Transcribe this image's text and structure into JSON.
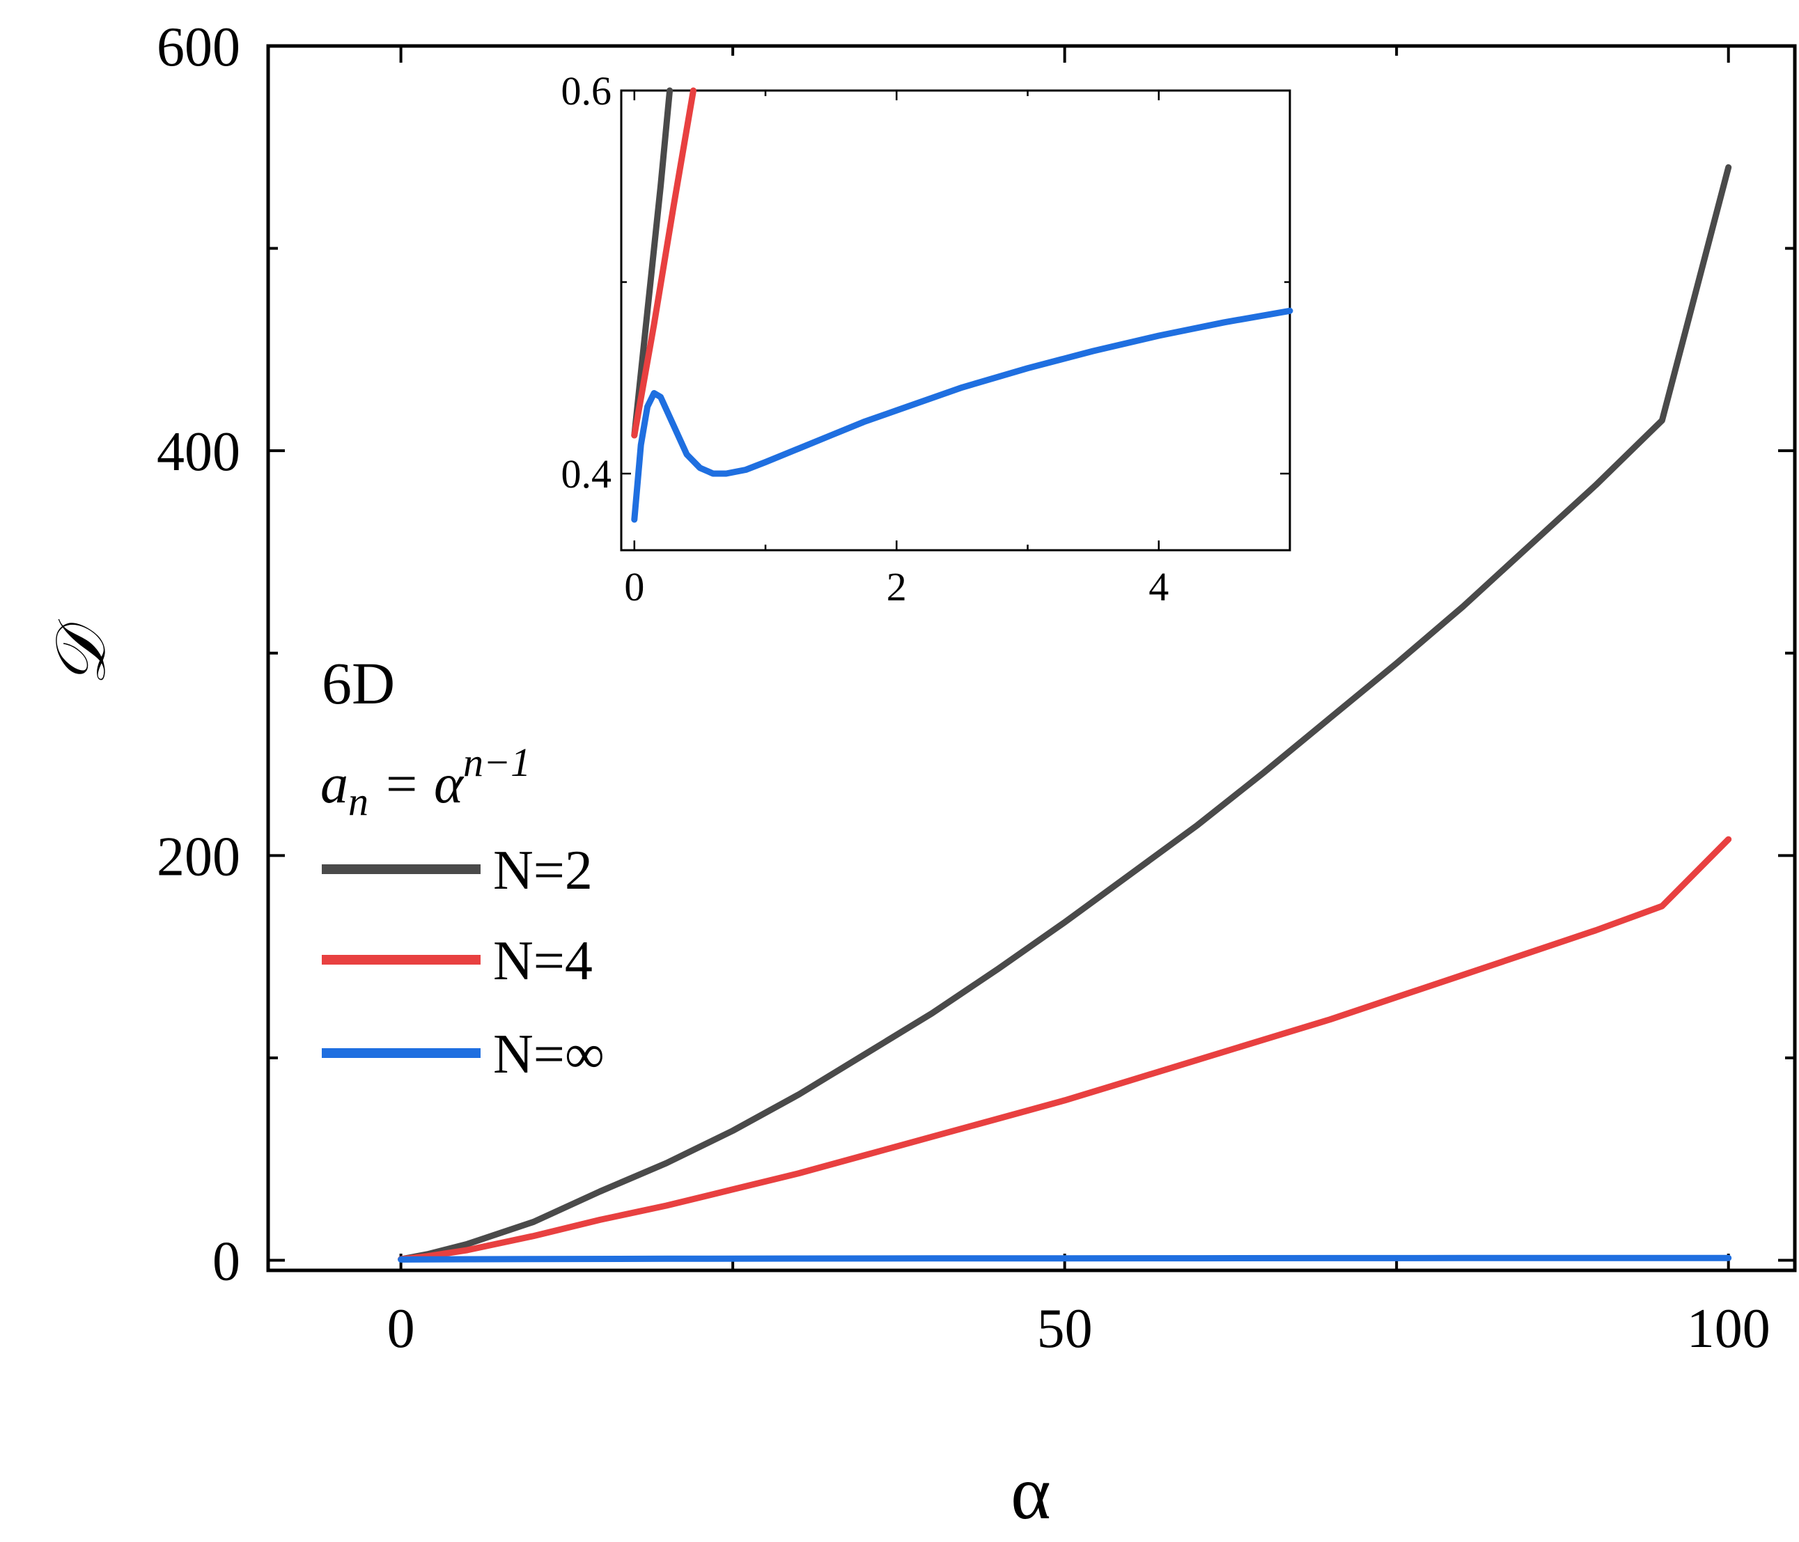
{
  "chart_data": [
    {
      "type": "line",
      "xlabel": "α",
      "ylabel": "𝒟",
      "xlim": [
        -10,
        105
      ],
      "ylim": [
        -5,
        600
      ],
      "xticks": [
        "0",
        "50",
        "100"
      ],
      "yticks": [
        "0",
        "200",
        "400",
        "600"
      ],
      "annotations": {
        "dimension": "6D",
        "formula_base": "a",
        "formula_sub": "n",
        "formula_eq": " = α",
        "formula_sup": "n−1"
      },
      "legend_placement": "middle-left",
      "grid": false,
      "series": [
        {
          "name": "N=2",
          "color": "#4a4a4a",
          "x": [
            0,
            2,
            5,
            10,
            15,
            20,
            25,
            30,
            35,
            40,
            45,
            50,
            55,
            60,
            65,
            70,
            75,
            80,
            85,
            90,
            95,
            100
          ],
          "y": [
            0.5,
            3,
            8,
            19,
            34,
            48,
            64,
            82,
            102,
            122,
            144,
            167,
            191,
            215,
            241,
            268,
            295,
            323,
            353,
            383,
            415,
            540
          ]
        },
        {
          "name": "N=4",
          "color": "#e84040",
          "x": [
            0,
            2,
            5,
            10,
            15,
            20,
            25,
            30,
            35,
            40,
            45,
            50,
            55,
            60,
            65,
            70,
            75,
            80,
            85,
            90,
            95,
            100
          ],
          "y": [
            0.5,
            2,
            5,
            12,
            20,
            27,
            35,
            43,
            52,
            61,
            70,
            79,
            89,
            99,
            109,
            119,
            130,
            141,
            152,
            163,
            175,
            208
          ]
        },
        {
          "name": "N=∞",
          "color": "#1f6fe0",
          "x": [
            0,
            10,
            20,
            30,
            40,
            50,
            60,
            70,
            80,
            90,
            100
          ],
          "y": [
            0.38,
            0.6,
            0.75,
            0.85,
            0.92,
            0.97,
            1.0,
            1.05,
            1.08,
            1.11,
            1.14
          ]
        }
      ]
    },
    {
      "type": "line",
      "inset": true,
      "xlim": [
        -0.1,
        5
      ],
      "ylim": [
        0.36,
        0.6
      ],
      "xticks": [
        "0",
        "2",
        "4"
      ],
      "yticks": [
        "0.4",
        "0.6"
      ],
      "series": [
        {
          "name": "N=2",
          "color": "#4a4a4a",
          "x": [
            0,
            0.1,
            0.2,
            0.27
          ],
          "y": [
            0.42,
            0.485,
            0.55,
            0.6
          ]
        },
        {
          "name": "N=4",
          "color": "#e84040",
          "x": [
            0,
            0.15,
            0.3,
            0.45
          ],
          "y": [
            0.42,
            0.478,
            0.54,
            0.6
          ]
        },
        {
          "name": "N=∞",
          "color": "#1f6fe0",
          "x": [
            0,
            0.05,
            0.1,
            0.15,
            0.2,
            0.3,
            0.4,
            0.5,
            0.6,
            0.7,
            0.85,
            1.0,
            1.25,
            1.5,
            1.75,
            2.0,
            2.5,
            3.0,
            3.5,
            4.0,
            4.5,
            5.0
          ],
          "y": [
            0.376,
            0.415,
            0.435,
            0.442,
            0.44,
            0.425,
            0.41,
            0.403,
            0.4,
            0.4,
            0.402,
            0.406,
            0.413,
            0.42,
            0.427,
            0.433,
            0.445,
            0.455,
            0.464,
            0.472,
            0.479,
            0.485
          ]
        }
      ]
    }
  ]
}
